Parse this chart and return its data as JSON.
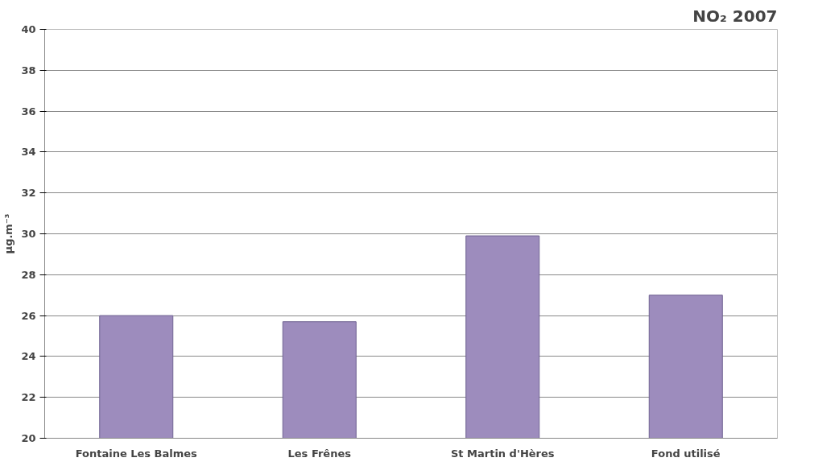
{
  "chart_data": {
    "type": "bar",
    "title": "NO₂ 2007",
    "ylabel": "µg.m⁻³",
    "categories": [
      "Fontaine Les Balmes",
      "Les Frênes",
      "St Martin d'Hères",
      "Fond utilisé"
    ],
    "values": [
      26.0,
      25.7,
      29.9,
      27.0
    ],
    "color": "#9d8cbd",
    "ylim": [
      20,
      40
    ],
    "yticks": [
      20,
      22,
      24,
      26,
      28,
      30,
      32,
      34,
      36,
      38,
      40
    ],
    "grid": "y"
  }
}
